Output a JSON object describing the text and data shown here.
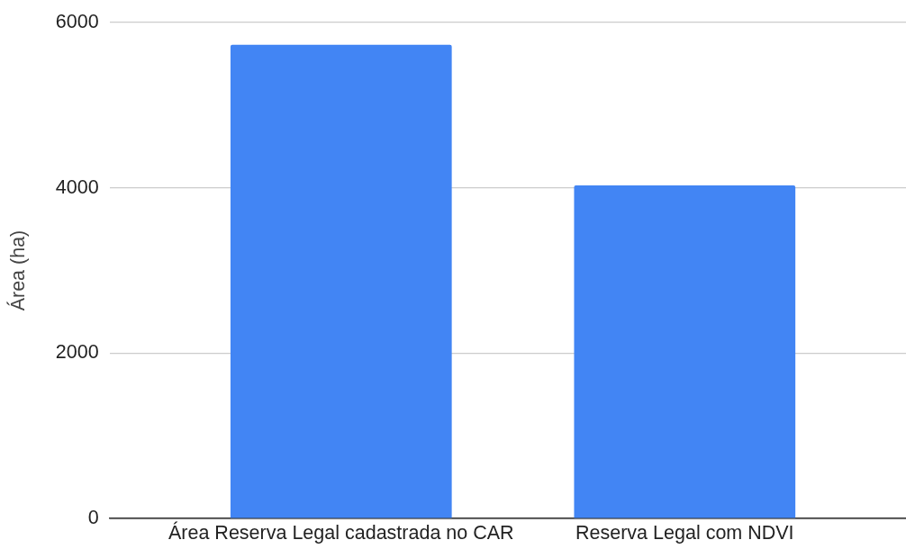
{
  "chart_data": {
    "type": "bar",
    "ylabel": "Área (ha)",
    "categories": [
      "Área Reserva Legal cadastrada no CAR",
      "Reserva Legal com NDVI"
    ],
    "values": [
      5730,
      4030
    ],
    "color": "#4285f4",
    "ylim": [
      0,
      6000
    ],
    "yticks": [
      0,
      2000,
      4000,
      6000
    ],
    "grid": "y"
  }
}
